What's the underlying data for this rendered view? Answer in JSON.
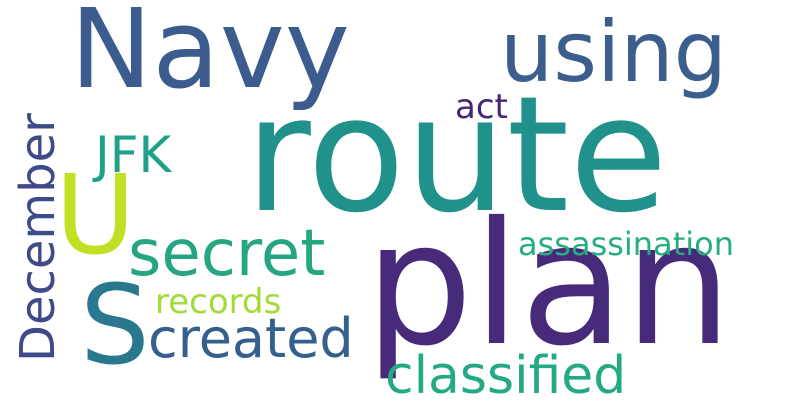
{
  "words": [
    {
      "key": "navy",
      "text": "Navy",
      "color": "#3b5c8c"
    },
    {
      "key": "using",
      "text": "using",
      "color": "#3c5e8d"
    },
    {
      "key": "route",
      "text": "route",
      "color": "#21918c"
    },
    {
      "key": "act",
      "text": "act",
      "color": "#482475"
    },
    {
      "key": "jfk",
      "text": "JFK",
      "color": "#1fa088"
    },
    {
      "key": "u",
      "text": "U",
      "color": "#c2df23"
    },
    {
      "key": "secret",
      "text": "secret",
      "color": "#25a582"
    },
    {
      "key": "plan",
      "text": "plan",
      "color": "#472a7a"
    },
    {
      "key": "assassination",
      "text": "assassination",
      "color": "#27ad81"
    },
    {
      "key": "records",
      "text": "records",
      "color": "#a2da37"
    },
    {
      "key": "s",
      "text": "S",
      "color": "#2a788e"
    },
    {
      "key": "created",
      "text": "created",
      "color": "#355f8d"
    },
    {
      "key": "classified",
      "text": "classified",
      "color": "#23a983"
    },
    {
      "key": "december",
      "text": "December",
      "color": "#3e4a89"
    }
  ]
}
